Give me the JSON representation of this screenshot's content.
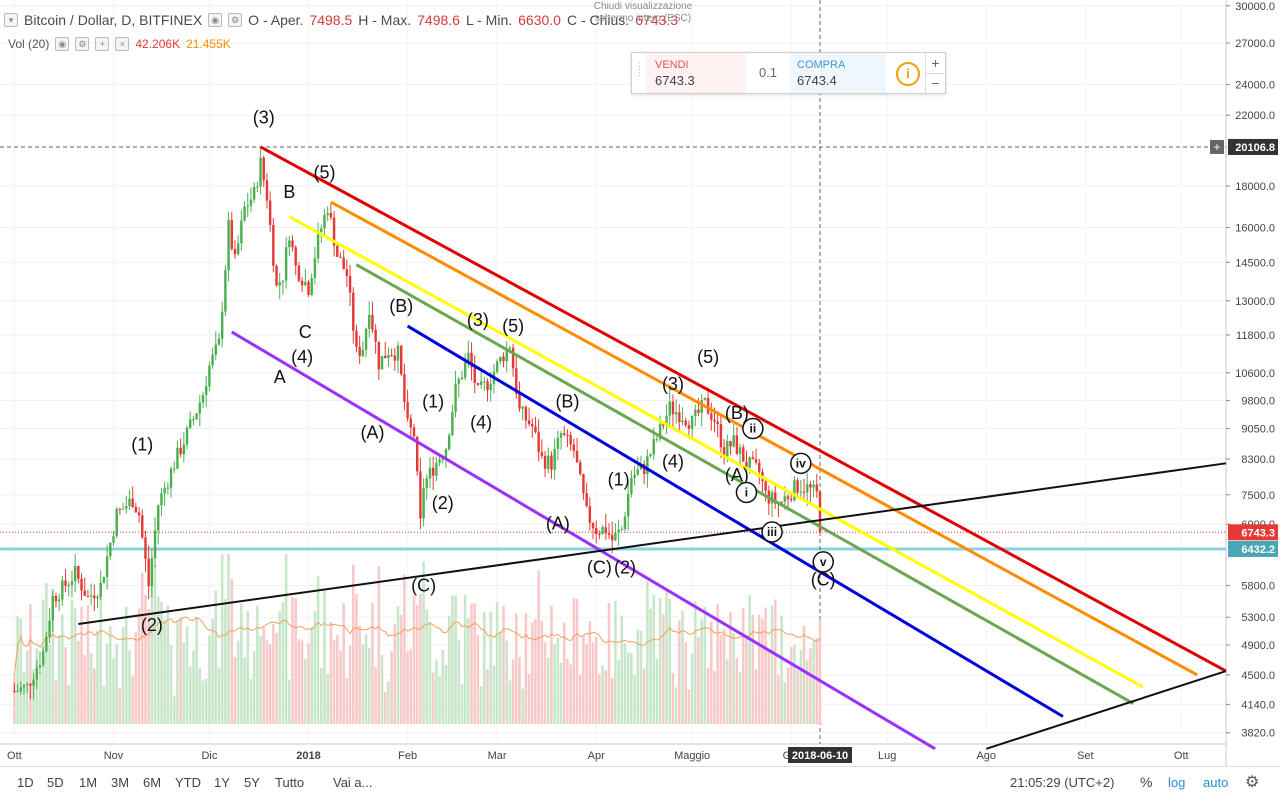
{
  "header": {
    "symbol": "Bitcoin / Dollar, D, BITFINEX",
    "open_label": "O - Aper.",
    "open_value": "7498.5",
    "high_label": "H - Max.",
    "high_value": "7498.6",
    "low_label": "L - Min.",
    "low_value": "6630.0",
    "close_label": "C - Chius.",
    "close_value": "6743.3",
    "volume_label": "Vol (20)",
    "volume_value": "42.206K",
    "volume_ma_value": "21.455K",
    "tooltip": "Chiudi visualizzazione schermo intero (ESC)"
  },
  "trade_panel": {
    "sell_label": "VENDI",
    "sell_price": "6743.3",
    "quantity": "0.1",
    "buy_label": "COMPRA",
    "buy_price": "6743.4",
    "info_icon": "info-icon",
    "plus": "+",
    "minus": "−"
  },
  "bottom_toolbar": {
    "timeframes": [
      "1D",
      "5D",
      "1M",
      "3M",
      "6M",
      "YTD",
      "1Y",
      "5Y",
      "Tutto",
      "Vai a..."
    ],
    "time": "21:05:29 (UTC+2)",
    "percent": "%",
    "log": "log",
    "auto": "auto",
    "settings_icon": "gear-icon"
  },
  "colors": {
    "up_candle": "#4caf50",
    "down_candle": "#e53935",
    "red_line": "#e00000",
    "orange_line": "#ff8c00",
    "yellow_line": "#ffff00",
    "green_line": "#6aa84f",
    "blue_line": "#0000dd",
    "purple_line": "#9b30ff",
    "horizontal_line": "#8cd3e0",
    "price_badge": "#e53935",
    "crosshair_badge": "#333333"
  },
  "chart_data": {
    "type": "candlestick",
    "title": "Bitcoin / Dollar, D, BITFINEX",
    "log_scale": true,
    "x_ticks": [
      "Ott",
      "Nov",
      "Dic",
      "2018",
      "Feb",
      "Mar",
      "Apr",
      "Maggio",
      "Giu",
      "Lug",
      "Ago",
      "Set",
      "Ott"
    ],
    "y_ticks": [
      30000,
      27000,
      24000,
      22000,
      20106.8,
      18000,
      16000,
      14500,
      13000,
      11800,
      10600,
      9800,
      9050,
      8300,
      7500,
      6900,
      6743.3,
      6432.2,
      5800,
      5300,
      4900,
      4500,
      4140,
      3820
    ],
    "ylim": [
      3700,
      30500
    ],
    "date_range": [
      "2017-09-29",
      "2018-10-15"
    ],
    "last_price": 6743.3,
    "horizontal_level": 6432.2,
    "crosshair_price": 20106.8,
    "crosshair_date": "2018-06-10",
    "price_path": [
      [
        "2017-10-01",
        4300
      ],
      [
        "2017-10-05",
        4350
      ],
      [
        "2017-10-10",
        4800
      ],
      [
        "2017-10-13",
        5600
      ],
      [
        "2017-10-16",
        5750
      ],
      [
        "2017-10-20",
        6000
      ],
      [
        "2017-10-24",
        5600
      ],
      [
        "2017-10-28",
        5800
      ],
      [
        "2017-11-02",
        7100
      ],
      [
        "2017-11-07",
        7400
      ],
      [
        "2017-11-09",
        7100
      ],
      [
        "2017-11-12",
        5800
      ],
      [
        "2017-11-15",
        7300
      ],
      [
        "2017-11-20",
        8200
      ],
      [
        "2017-11-26",
        9300
      ],
      [
        "2017-11-29",
        10000
      ],
      [
        "2017-12-01",
        10800
      ],
      [
        "2017-12-04",
        11500
      ],
      [
        "2017-12-07",
        16000
      ],
      [
        "2017-12-09",
        14500
      ],
      [
        "2017-12-12",
        16900
      ],
      [
        "2017-12-15",
        17600
      ],
      [
        "2017-12-17",
        19200
      ],
      [
        "2017-12-19",
        17500
      ],
      [
        "2017-12-22",
        13500
      ],
      [
        "2017-12-24",
        14000
      ],
      [
        "2017-12-26",
        15800
      ],
      [
        "2017-12-28",
        14300
      ],
      [
        "2018-01-01",
        13500
      ],
      [
        "2018-01-04",
        15500
      ],
      [
        "2018-01-07",
        17000
      ],
      [
        "2018-01-10",
        14800
      ],
      [
        "2018-01-13",
        14000
      ],
      [
        "2018-01-16",
        11200
      ],
      [
        "2018-01-18",
        11400
      ],
      [
        "2018-01-20",
        12800
      ],
      [
        "2018-01-23",
        10900
      ],
      [
        "2018-01-26",
        11300
      ],
      [
        "2018-01-29",
        11200
      ],
      [
        "2018-02-01",
        9100
      ],
      [
        "2018-02-03",
        8900
      ],
      [
        "2018-02-05",
        6900
      ],
      [
        "2018-02-06",
        7700
      ],
      [
        "2018-02-09",
        8100
      ],
      [
        "2018-02-13",
        8600
      ],
      [
        "2018-02-16",
        10100
      ],
      [
        "2018-02-20",
        11100
      ],
      [
        "2018-02-23",
        10000
      ],
      [
        "2018-02-26",
        10300
      ],
      [
        "2018-03-02",
        11000
      ],
      [
        "2018-03-05",
        11500
      ],
      [
        "2018-03-08",
        9500
      ],
      [
        "2018-03-12",
        9100
      ],
      [
        "2018-03-15",
        8300
      ],
      [
        "2018-03-18",
        8200
      ],
      [
        "2018-03-21",
        8900
      ],
      [
        "2018-03-25",
        8500
      ],
      [
        "2018-03-29",
        7100
      ],
      [
        "2018-04-01",
        6800
      ],
      [
        "2018-04-04",
        6800
      ],
      [
        "2018-04-06",
        6600
      ],
      [
        "2018-04-09",
        6800
      ],
      [
        "2018-04-12",
        7900
      ],
      [
        "2018-04-16",
        8100
      ],
      [
        "2018-04-20",
        8800
      ],
      [
        "2018-04-24",
        9600
      ],
      [
        "2018-04-28",
        9400
      ],
      [
        "2018-05-01",
        9200
      ],
      [
        "2018-05-05",
        9700
      ],
      [
        "2018-05-08",
        9300
      ],
      [
        "2018-05-11",
        8500
      ],
      [
        "2018-05-14",
        8700
      ],
      [
        "2018-05-18",
        8200
      ],
      [
        "2018-05-22",
        8000
      ],
      [
        "2018-05-24",
        7500
      ],
      [
        "2018-05-28",
        7300
      ],
      [
        "2018-05-31",
        7500
      ],
      [
        "2018-06-03",
        7700
      ],
      [
        "2018-06-06",
        7650
      ],
      [
        "2018-06-09",
        7500
      ],
      [
        "2018-06-10",
        6743.3
      ]
    ],
    "trend_lines": [
      {
        "color": "red",
        "from": [
          "2017-12-17",
          20106.8
        ],
        "to": [
          "2018-10-15",
          4550
        ]
      },
      {
        "color": "orange",
        "from": [
          "2018-01-08",
          17200
        ],
        "to": [
          "2018-10-06",
          4500
        ]
      },
      {
        "color": "yellow",
        "from": [
          "2017-12-26",
          16500
        ],
        "to": [
          "2018-09-19",
          4350
        ]
      },
      {
        "color": "green",
        "from": [
          "2018-01-16",
          14400
        ],
        "to": [
          "2018-09-16",
          4150
        ]
      },
      {
        "color": "blue",
        "from": [
          "2018-02-01",
          12100
        ],
        "to": [
          "2018-08-25",
          4000
        ]
      },
      {
        "color": "purple",
        "from": [
          "2017-12-08",
          11900
        ],
        "to": [
          "2018-07-16",
          3650
        ]
      },
      {
        "color": "black",
        "from": [
          "2017-10-21",
          5200
        ],
        "to": [
          "2018-10-15",
          8200
        ]
      },
      {
        "color": "black",
        "from": [
          "2018-08-01",
          3650
        ],
        "to": [
          "2018-10-15",
          4550
        ]
      }
    ],
    "wave_labels": [
      {
        "text": "(1)",
        "date": "2017-11-10",
        "price": 8500
      },
      {
        "text": "(2)",
        "date": "2017-11-13",
        "price": 5100
      },
      {
        "text": "(3)",
        "date": "2017-12-18",
        "price": 21500
      },
      {
        "text": "(4)",
        "date": "2017-12-30",
        "price": 10900
      },
      {
        "text": "(5)",
        "date": "2018-01-06",
        "price": 18400
      },
      {
        "text": "A",
        "date": "2017-12-23",
        "price": 10300
      },
      {
        "text": "B",
        "date": "2017-12-26",
        "price": 17400
      },
      {
        "text": "C",
        "date": "2017-12-31",
        "price": 11700
      },
      {
        "text": "(A)",
        "date": "2018-01-21",
        "price": 8800
      },
      {
        "text": "(B)",
        "date": "2018-01-30",
        "price": 12600
      },
      {
        "text": "(C)",
        "date": "2018-02-06",
        "price": 5700
      },
      {
        "text": "(1)",
        "date": "2018-02-09",
        "price": 9600
      },
      {
        "text": "(2)",
        "date": "2018-02-12",
        "price": 7200
      },
      {
        "text": "(3)",
        "date": "2018-02-23",
        "price": 12100
      },
      {
        "text": "(4)",
        "date": "2018-02-24",
        "price": 9050
      },
      {
        "text": "(5)",
        "date": "2018-03-06",
        "price": 11900
      },
      {
        "text": "(A)",
        "date": "2018-03-20",
        "price": 6800
      },
      {
        "text": "(B)",
        "date": "2018-03-23",
        "price": 9600
      },
      {
        "text": "(C)",
        "date": "2018-04-02",
        "price": 6000
      },
      {
        "text": "(1)",
        "date": "2018-04-08",
        "price": 7700
      },
      {
        "text": "(2)",
        "date": "2018-04-10",
        "price": 6000
      },
      {
        "text": "(3)",
        "date": "2018-04-25",
        "price": 10100
      },
      {
        "text": "(4)",
        "date": "2018-04-25",
        "price": 8100
      },
      {
        "text": "(5)",
        "date": "2018-05-06",
        "price": 10900
      },
      {
        "text": "(A)",
        "date": "2018-05-15",
        "price": 7800
      },
      {
        "text": "(B)",
        "date": "2018-05-15",
        "price": 9300
      },
      {
        "text": "(C)",
        "date": "2018-06-11",
        "price": 5800
      }
    ],
    "circled_labels": [
      {
        "text": "i",
        "date": "2018-05-18",
        "price": 7550
      },
      {
        "text": "ii",
        "date": "2018-05-20",
        "price": 9050
      },
      {
        "text": "iii",
        "date": "2018-05-26",
        "price": 6750
      },
      {
        "text": "iv",
        "date": "2018-06-04",
        "price": 8200
      },
      {
        "text": "v",
        "date": "2018-06-11",
        "price": 6200
      }
    ]
  }
}
